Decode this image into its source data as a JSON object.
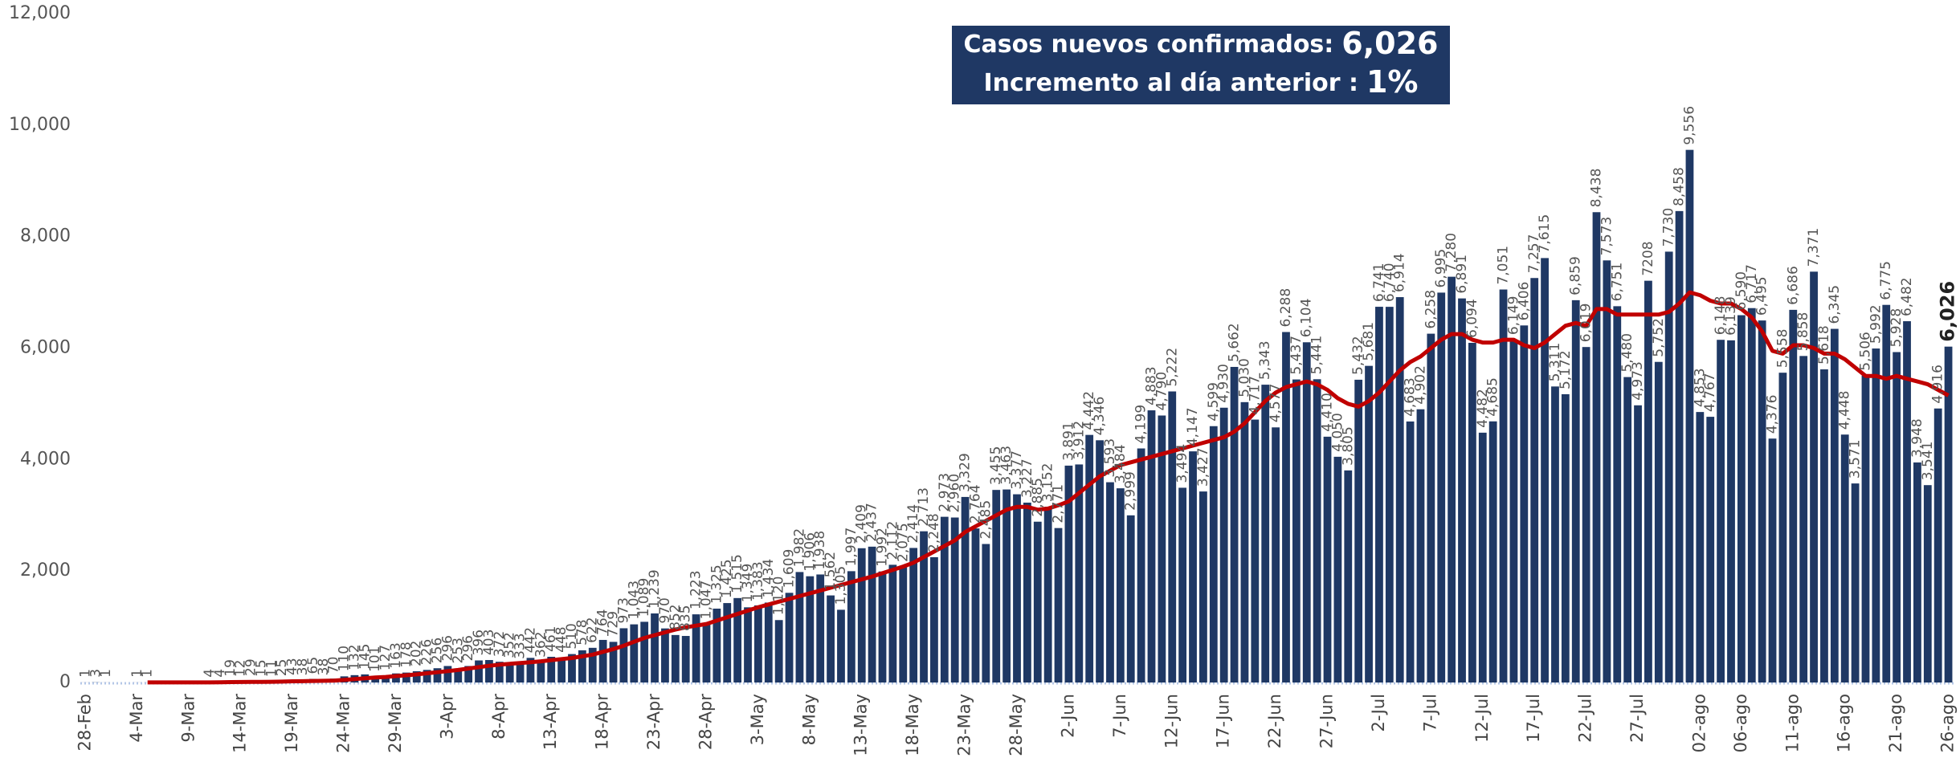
{
  "chart_data": {
    "type": "bar",
    "annotation": {
      "label1": "Casos nuevos confirmados:",
      "value1": "6,026",
      "label2": "Incremento al día anterior :",
      "value2": "1%"
    },
    "categories": [
      "28-Feb",
      null,
      null,
      null,
      null,
      "4-Mar",
      null,
      null,
      null,
      null,
      "9-Mar",
      null,
      null,
      null,
      null,
      "14-Mar",
      null,
      null,
      null,
      null,
      "19-Mar",
      null,
      null,
      null,
      null,
      "24-Mar",
      null,
      null,
      null,
      null,
      "29-Mar",
      null,
      null,
      null,
      null,
      "3-Apr",
      null,
      null,
      null,
      null,
      "8-Apr",
      null,
      null,
      null,
      null,
      "13-Apr",
      null,
      null,
      null,
      null,
      "18-Apr",
      null,
      null,
      null,
      null,
      "23-Apr",
      null,
      null,
      null,
      null,
      "28-Apr",
      null,
      null,
      null,
      null,
      "3-May",
      null,
      null,
      null,
      null,
      "8-May",
      null,
      null,
      null,
      null,
      "13-May",
      null,
      null,
      null,
      null,
      "18-May",
      null,
      null,
      null,
      null,
      "23-May",
      null,
      null,
      null,
      null,
      "28-May",
      null,
      null,
      null,
      null,
      "2-Jun",
      null,
      null,
      null,
      null,
      "7-Jun",
      null,
      null,
      null,
      null,
      "12-Jun",
      null,
      null,
      null,
      null,
      "17-Jun",
      null,
      null,
      null,
      null,
      "22-Jun",
      null,
      null,
      null,
      null,
      "27-Jun",
      null,
      null,
      null,
      null,
      "2-Jul",
      null,
      null,
      null,
      null,
      "7-Jul",
      null,
      null,
      null,
      null,
      "12-Jul",
      null,
      null,
      null,
      null,
      "17-Jul",
      null,
      null,
      null,
      null,
      "22-Jul",
      null,
      null,
      null,
      null,
      "27-Jul",
      null,
      null,
      null,
      null,
      null,
      "02-ago",
      null,
      null,
      null,
      "06-ago",
      null,
      null,
      null,
      null,
      "11-ago",
      null,
      null,
      null,
      null,
      "16-ago",
      null,
      null,
      null,
      null,
      "21-ago",
      null,
      null,
      null,
      null,
      "26-ago"
    ],
    "series": [
      {
        "type": "bar",
        "color": "#1f3864",
        "values": [
          1,
          3,
          1,
          0,
          0,
          1,
          1,
          0,
          0,
          0,
          0,
          0,
          4,
          4,
          19,
          12,
          29,
          15,
          11,
          25,
          43,
          38,
          65,
          38,
          70,
          110,
          132,
          145,
          101,
          127,
          163,
          178,
          202,
          226,
          256,
          296,
          253,
          296,
          396,
          403,
          372,
          352,
          333,
          442,
          362,
          461,
          448,
          510,
          578,
          622,
          764,
          729,
          973,
          1043,
          1089,
          1239,
          970,
          852,
          835,
          1223,
          1047,
          1325,
          1425,
          1515,
          1349,
          1383,
          1434,
          1120,
          1609,
          1982,
          1906,
          1938,
          1562,
          1305,
          1997,
          2409,
          2437,
          1992,
          2112,
          2075,
          2414,
          2713,
          2248,
          2973,
          2960,
          3329,
          2764,
          2485,
          3455,
          3463,
          3377,
          3227,
          2885,
          3152,
          2771,
          3891,
          3912,
          4442,
          4346,
          3593,
          3484,
          2999,
          4199,
          4883,
          4790,
          5222,
          3494,
          4147,
          3427,
          4599,
          4930,
          5662,
          5030,
          4717,
          5343,
          4577,
          6288,
          5437,
          6104,
          5441,
          4410,
          4050,
          3805,
          5432,
          5681,
          6741,
          6740,
          6914,
          4683,
          4902,
          6258,
          6995,
          7280,
          6891,
          6094,
          4482,
          4685,
          7051,
          6149,
          6406,
          7257,
          7615,
          5311,
          5172,
          6859,
          6019,
          8438,
          7573,
          6751,
          5480,
          4973,
          7208,
          5752,
          7730,
          8458,
          9556,
          4853,
          4767,
          6148,
          6139,
          6590,
          6717,
          6495,
          4376,
          5558,
          6686,
          5858,
          7371,
          5618,
          6345,
          4448,
          3571,
          5506,
          5992,
          6775,
          5928,
          6482,
          3948,
          3541,
          4916,
          6026
        ],
        "value_labels": [
          "1",
          "3",
          "1",
          null,
          null,
          "1",
          "1",
          null,
          null,
          null,
          null,
          null,
          "4",
          "4",
          "19",
          "12",
          "29",
          "15",
          "11",
          "25",
          "43",
          "38",
          "65",
          "38",
          "70",
          "110",
          "132",
          "145",
          "101",
          "127",
          "163",
          "178",
          "202",
          "226",
          "256",
          "296",
          "253",
          "296",
          "396",
          "403",
          "372",
          "352",
          "333",
          "442",
          "362",
          "461",
          "448",
          "510",
          "578",
          "622",
          "764",
          "729",
          "973",
          "1,043",
          "1,089",
          "1,239",
          "970",
          "852",
          "835",
          "1,223",
          "1,047",
          "1,325",
          "1,425",
          "1,515",
          "1,349",
          "1,383",
          "1,434",
          "1,120",
          "1,609",
          "1,982",
          "1,906",
          "1,938",
          "1,562",
          "1,305",
          "1,997",
          "2,409",
          "2,437",
          "1,992",
          "2,112",
          "2,075",
          "2,414",
          "2,713",
          "2,248",
          "2,973",
          "2,960",
          "3,329",
          "2,764",
          "2,485",
          "3,455",
          "3,463",
          "3,377",
          "3,227",
          "2,885",
          "3,152",
          "2,771",
          "3,891",
          "3,912",
          "4,442",
          "4,346",
          "3,593",
          "3,484",
          "2,999",
          "4,199",
          "4,883",
          "4,790",
          "5,222",
          "3,494",
          "4,147",
          "3,427",
          "4,599",
          "4,930",
          "5,662",
          "5,030",
          "4,717",
          "5,343",
          "4,577",
          "6,288",
          "5,437",
          "6,104",
          "5,441",
          "4,410",
          "4,050",
          "3,805",
          "5,432",
          "5,681",
          "6,741",
          "6,740",
          "6,914",
          "4,683",
          "4,902",
          "6,258",
          "6,995",
          "7,280",
          "6,891",
          "6,094",
          "4,482",
          "4,685",
          "7,051",
          "6,149",
          "6,406",
          "7,257",
          "7,615",
          "5,311",
          "5,172",
          "6,859",
          "6,019",
          "8,438",
          "7,573",
          "6,751",
          "5,480",
          "4,973",
          "7208",
          "5,752",
          "7,730",
          "8,458",
          "9,556",
          "4,853",
          "4,767",
          "6,148",
          "6,139",
          "6,590",
          "6,717",
          "6,495",
          "4,376",
          "5,558",
          "6,686",
          "5,858",
          "7,371",
          "5,618",
          "6,345",
          "4,448",
          "3,571",
          "5,506",
          "5,992",
          "6,775",
          "5,928",
          "6,482",
          "3,948",
          "3,541",
          "4,916",
          "6,026"
        ]
      },
      {
        "type": "line",
        "color": "#c00000",
        "values": [
          null,
          null,
          null,
          null,
          null,
          null,
          1,
          1,
          1,
          1,
          1,
          1,
          2,
          4,
          7,
          8,
          12,
          12,
          13,
          16,
          21,
          23,
          28,
          30,
          34,
          46,
          60,
          75,
          91,
          100,
          115,
          130,
          145,
          165,
          185,
          205,
          225,
          250,
          275,
          300,
          320,
          335,
          350,
          365,
          380,
          400,
          420,
          440,
          470,
          500,
          550,
          600,
          660,
          730,
          800,
          850,
          900,
          950,
          990,
          1020,
          1050,
          1110,
          1170,
          1230,
          1290,
          1350,
          1400,
          1450,
          1500,
          1550,
          1600,
          1650,
          1700,
          1750,
          1800,
          1850,
          1900,
          1960,
          2020,
          2080,
          2150,
          2250,
          2350,
          2450,
          2550,
          2700,
          2800,
          2900,
          3000,
          3100,
          3150,
          3150,
          3100,
          3120,
          3180,
          3250,
          3400,
          3550,
          3700,
          3800,
          3900,
          3950,
          4000,
          4050,
          4100,
          4150,
          4200,
          4250,
          4300,
          4350,
          4400,
          4500,
          4650,
          4850,
          5050,
          5200,
          5300,
          5350,
          5400,
          5350,
          5250,
          5100,
          5000,
          4950,
          5050,
          5200,
          5400,
          5600,
          5750,
          5850,
          6000,
          6150,
          6250,
          6250,
          6150,
          6100,
          6100,
          6150,
          6150,
          6050,
          6000,
          6100,
          6250,
          6400,
          6450,
          6400,
          6700,
          6700,
          6600,
          6600,
          6600,
          6600,
          6600,
          6650,
          6800,
          7000,
          6950,
          6850,
          6800,
          6800,
          6700,
          6550,
          6300,
          5950,
          5900,
          6050,
          6050,
          6000,
          5900,
          5900,
          5800,
          5650,
          5500,
          5500,
          5450,
          5500,
          5450,
          5400,
          5350,
          5250,
          5150
        ]
      }
    ],
    "ylim": [
      0,
      12000
    ],
    "yticks": [
      0,
      {
        "value": 2000,
        "label": "2,000"
      },
      {
        "value": 4000,
        "label": "4,000"
      },
      {
        "value": 6000,
        "label": "6,000"
      },
      {
        "value": 8000,
        "label": "8,000"
      },
      {
        "value": 10000,
        "label": "10,000"
      },
      {
        "value": 12000,
        "label": "12,000"
      }
    ],
    "grid": false
  }
}
